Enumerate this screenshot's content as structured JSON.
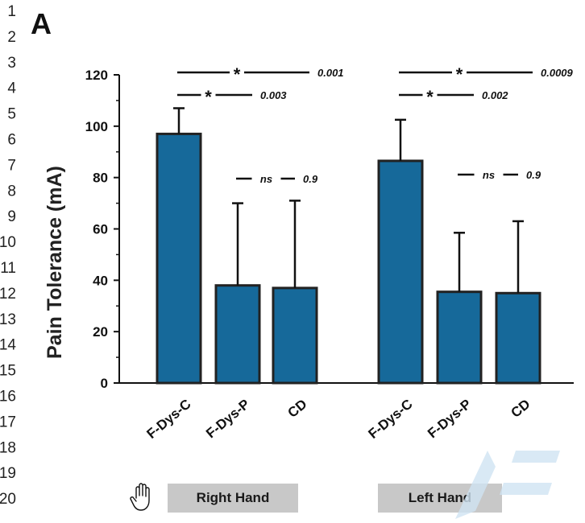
{
  "line_numbers": [
    "1",
    "2",
    "3",
    "4",
    "5",
    "6",
    "7",
    "8",
    "9",
    "10",
    "11",
    "12",
    "13",
    "14",
    "15",
    "16",
    "17",
    "18",
    "19",
    "20"
  ],
  "panel_label": "A",
  "group_labels": {
    "right": "Right Hand",
    "left": "Left Hand"
  },
  "icons": {
    "hand": "raised-hand-icon"
  },
  "colors": {
    "bar": "#16699a",
    "bar_edge": "#222222",
    "group_box": "#c8c8c8",
    "watermark": "#cfe3f3"
  },
  "chart_data": {
    "type": "bar",
    "ylabel": "Pain Tolerance (mA)",
    "ylim": [
      0,
      120
    ],
    "yticks": [
      "0",
      "20",
      "40",
      "60",
      "80",
      "100",
      "120"
    ],
    "bars": [
      {
        "category": "F-Dys-C",
        "group": "Right Hand",
        "value": 97,
        "error": 10
      },
      {
        "category": "F-Dys-P",
        "group": "Right Hand",
        "value": 38,
        "error": 32
      },
      {
        "category": "CD",
        "group": "Right Hand",
        "value": 37,
        "error": 34
      },
      {
        "category": "F-Dys-C",
        "group": "Left Hand",
        "value": 86.5,
        "error": 16
      },
      {
        "category": "F-Dys-P",
        "group": "Left Hand",
        "value": 35.5,
        "error": 23
      },
      {
        "category": "CD",
        "group": "Left Hand",
        "value": 35,
        "error": 28
      }
    ],
    "comparisons": [
      {
        "from": 0,
        "to": 2,
        "label": "*",
        "p": "0.001"
      },
      {
        "from": 0,
        "to": 1,
        "label": "*",
        "p": "0.003"
      },
      {
        "from": 1,
        "to": 2,
        "label": "ns",
        "p": "0.9"
      },
      {
        "from": 3,
        "to": 5,
        "label": "*",
        "p": "0.0009"
      },
      {
        "from": 3,
        "to": 4,
        "label": "*",
        "p": "0.002"
      },
      {
        "from": 4,
        "to": 5,
        "label": "ns",
        "p": "0.9"
      }
    ]
  }
}
